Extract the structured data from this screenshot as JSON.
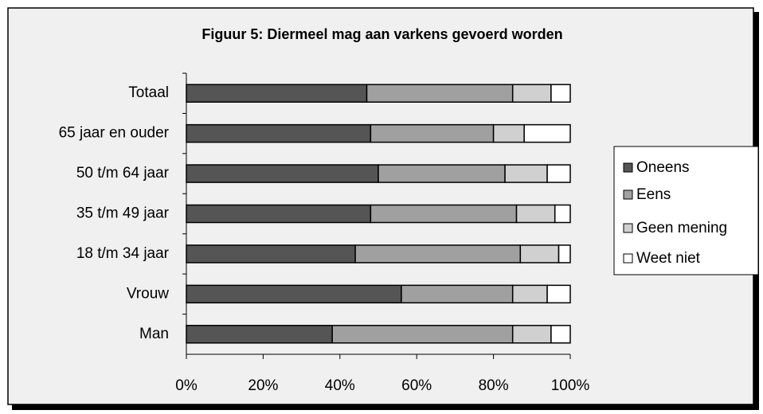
{
  "chart_data": {
    "type": "bar",
    "orientation": "horizontal",
    "stacked": true,
    "title": "Figuur 5: Diermeel mag aan varkens gevoerd worden",
    "categories": [
      "Totaal",
      "65 jaar en ouder",
      "50 t/m 64 jaar",
      "35 t/m 49 jaar",
      "18 t/m 34 jaar",
      "Vrouw",
      "Man"
    ],
    "series": [
      {
        "name": "Oneens",
        "color": "#555555",
        "values": [
          47,
          48,
          50,
          48,
          44,
          56,
          38
        ]
      },
      {
        "name": "Eens",
        "color": "#a0a0a0",
        "values": [
          38,
          32,
          33,
          38,
          43,
          29,
          47
        ]
      },
      {
        "name": "Geen mening",
        "color": "#d0d0d0",
        "values": [
          10,
          8,
          11,
          10,
          10,
          9,
          10
        ]
      },
      {
        "name": "Weet niet",
        "color": "#ffffff",
        "values": [
          5,
          12,
          6,
          4,
          3,
          6,
          5
        ]
      }
    ],
    "xlim": [
      0,
      100
    ],
    "xticks": [
      {
        "value": 0,
        "label": "0%"
      },
      {
        "value": 20,
        "label": "20%"
      },
      {
        "value": 40,
        "label": "40%"
      },
      {
        "value": 60,
        "label": "60%"
      },
      {
        "value": 80,
        "label": "80%"
      },
      {
        "value": 100,
        "label": "100%"
      }
    ],
    "legend": "right"
  }
}
